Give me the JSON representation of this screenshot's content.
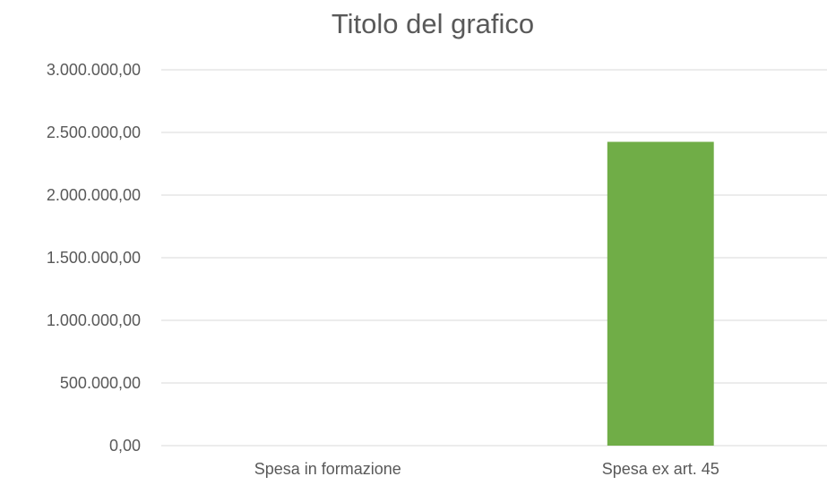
{
  "chart_data": {
    "type": "bar",
    "title": "Titolo del grafico",
    "categories": [
      "Spesa in formazione",
      "Spesa ex art. 45"
    ],
    "values": [
      0,
      2425000
    ],
    "ylim": [
      0,
      3000000
    ],
    "y_ticks": [
      0,
      500000,
      1000000,
      1500000,
      2000000,
      2500000,
      3000000
    ],
    "y_tick_labels": [
      "0,00",
      "500.000,00",
      "1.000.000,00",
      "1.500.000,00",
      "2.000.000,00",
      "2.500.000,00",
      "3.000.000,00"
    ],
    "grid": true,
    "legend": "none",
    "bar_color": "#70ad47",
    "text_color": "#595959",
    "grid_color": "#d9d9d9"
  }
}
